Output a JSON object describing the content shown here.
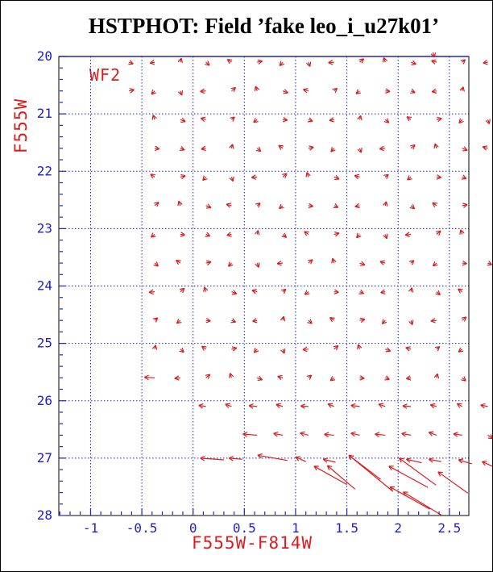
{
  "title": "HSTPHOT: Field ’fake leo_i_u27k01’",
  "camera_label": "WF2",
  "colors": {
    "accent_red": "#d81e1e",
    "accent_blue": "#2121cc",
    "frame": "#000000",
    "title_text": "#000000",
    "background": "#ffffff"
  },
  "chart_data": {
    "type": "quiver",
    "title": "HSTPHOT: Field ’fake leo_i_u27k01’",
    "xlabel": "F555W-F814W",
    "ylabel": "F555W",
    "annotation": "WF2",
    "xlim": [
      -1.31,
      2.69
    ],
    "ylim_top": 20,
    "ylim_bottom": 28,
    "x_gridlines": [
      -1,
      -0.5,
      0,
      0.5,
      1,
      1.5,
      2,
      2.5
    ],
    "y_gridlines": [
      21,
      22,
      23,
      24,
      25,
      26,
      27
    ],
    "x_major_ticks": [
      -1,
      -0.5,
      0,
      0.5,
      1,
      1.5,
      2,
      2.5
    ],
    "x_tick_labels": [
      "-1",
      "-0.5",
      "0",
      "0.5",
      "1",
      "1.5",
      "2",
      "2.5"
    ],
    "x_minor_step": 0.1,
    "y_major_ticks": [
      20,
      21,
      22,
      23,
      24,
      25,
      26,
      27,
      28
    ],
    "y_tick_labels": [
      "20",
      "21",
      "22",
      "23",
      "24",
      "25",
      "26",
      "27",
      "28"
    ],
    "y_minor_step": 0.2,
    "grid": true,
    "legend": "none",
    "vectors": [
      [
        -0.625,
        20.1,
        0.04,
        0.03
      ],
      [
        -0.375,
        20.1,
        -0.045,
        0.015
      ],
      [
        -0.125,
        20.1,
        0.01,
        -0.07
      ],
      [
        0.125,
        20.1,
        0.035,
        0.055
      ],
      [
        0.375,
        20.1,
        -0.04,
        -0.05
      ],
      [
        0.625,
        20.1,
        0.05,
        -0.02
      ],
      [
        0.875,
        20.1,
        -0.03,
        0.06
      ],
      [
        1.125,
        20.1,
        0.015,
        0.075
      ],
      [
        1.375,
        20.1,
        -0.055,
        0.01
      ],
      [
        1.625,
        20.1,
        0.04,
        -0.06
      ],
      [
        1.875,
        20.1,
        -0.015,
        -0.08
      ],
      [
        2.125,
        20.1,
        0.05,
        0.035
      ],
      [
        2.375,
        20.1,
        -0.05,
        -0.025
      ],
      [
        2.625,
        20.1,
        0.03,
        -0.045
      ],
      [
        2.875,
        20.1,
        -0.045,
        0.015
      ],
      [
        2.34,
        19.93,
        0.015,
        0.085
      ],
      [
        -0.625,
        20.6,
        0.05,
        -0.02
      ],
      [
        -0.375,
        20.6,
        -0.03,
        0.06
      ],
      [
        -0.125,
        20.6,
        0.015,
        0.075
      ],
      [
        0.125,
        20.6,
        -0.055,
        0.01
      ],
      [
        0.375,
        20.6,
        0.04,
        -0.06
      ],
      [
        0.625,
        20.6,
        -0.015,
        -0.08
      ],
      [
        0.875,
        20.6,
        0.05,
        0.035
      ],
      [
        1.125,
        20.6,
        -0.05,
        -0.025
      ],
      [
        1.375,
        20.6,
        0.03,
        -0.045
      ],
      [
        1.625,
        20.6,
        -0.035,
        0.05
      ],
      [
        1.875,
        20.6,
        0.045,
        0.01
      ],
      [
        2.125,
        20.6,
        0.04,
        0.03
      ],
      [
        2.375,
        20.6,
        -0.045,
        0.015
      ],
      [
        2.625,
        20.6,
        0.01,
        -0.07
      ],
      [
        -0.375,
        21.1,
        -0.015,
        -0.08
      ],
      [
        -0.125,
        21.1,
        0.05,
        0.035
      ],
      [
        0.125,
        21.1,
        -0.05,
        -0.025
      ],
      [
        0.375,
        21.1,
        0.03,
        -0.045
      ],
      [
        0.625,
        21.1,
        -0.035,
        0.05
      ],
      [
        0.875,
        21.1,
        0.045,
        0.01
      ],
      [
        1.125,
        21.1,
        0.04,
        0.03
      ],
      [
        1.375,
        21.1,
        -0.045,
        0.015
      ],
      [
        1.625,
        21.1,
        0.01,
        -0.07
      ],
      [
        1.875,
        21.1,
        0.035,
        0.055
      ],
      [
        2.125,
        21.1,
        -0.04,
        -0.05
      ],
      [
        2.375,
        21.1,
        0.05,
        -0.02
      ],
      [
        2.625,
        21.1,
        -0.03,
        0.06
      ],
      [
        2.875,
        21.1,
        0.015,
        0.075
      ],
      [
        -0.375,
        21.6,
        0.045,
        0.01
      ],
      [
        -0.125,
        21.6,
        0.04,
        0.03
      ],
      [
        0.125,
        21.6,
        -0.045,
        0.015
      ],
      [
        0.375,
        21.6,
        0.01,
        -0.07
      ],
      [
        0.625,
        21.6,
        0.035,
        0.055
      ],
      [
        0.875,
        21.6,
        -0.04,
        -0.05
      ],
      [
        1.125,
        21.6,
        0.05,
        -0.02
      ],
      [
        1.375,
        21.6,
        -0.03,
        0.06
      ],
      [
        1.625,
        21.6,
        0.015,
        0.075
      ],
      [
        1.875,
        21.6,
        -0.055,
        0.01
      ],
      [
        2.125,
        21.6,
        0.04,
        -0.06
      ],
      [
        2.375,
        21.6,
        -0.015,
        -0.08
      ],
      [
        2.625,
        21.6,
        0.05,
        0.035
      ],
      [
        2.875,
        21.6,
        -0.05,
        -0.025
      ],
      [
        -0.375,
        22.1,
        -0.04,
        -0.05
      ],
      [
        -0.125,
        22.1,
        0.05,
        -0.02
      ],
      [
        0.125,
        22.1,
        -0.03,
        0.06
      ],
      [
        0.375,
        22.1,
        0.015,
        0.075
      ],
      [
        0.625,
        22.1,
        -0.055,
        0.01
      ],
      [
        0.875,
        22.1,
        0.04,
        -0.06
      ],
      [
        1.125,
        22.1,
        -0.015,
        -0.08
      ],
      [
        1.375,
        22.1,
        0.05,
        0.035
      ],
      [
        1.625,
        22.1,
        -0.05,
        -0.025
      ],
      [
        1.875,
        22.1,
        0.03,
        -0.045
      ],
      [
        2.125,
        22.1,
        -0.035,
        0.05
      ],
      [
        2.375,
        22.1,
        0.045,
        0.01
      ],
      [
        2.625,
        22.1,
        0.04,
        0.03
      ],
      [
        -0.375,
        22.6,
        0.04,
        -0.06
      ],
      [
        -0.125,
        22.6,
        -0.015,
        -0.08
      ],
      [
        0.125,
        22.6,
        0.05,
        0.035
      ],
      [
        0.375,
        22.6,
        -0.05,
        -0.025
      ],
      [
        0.625,
        22.6,
        0.03,
        -0.045
      ],
      [
        0.875,
        22.6,
        -0.035,
        0.05
      ],
      [
        1.125,
        22.6,
        0.045,
        0.01
      ],
      [
        1.375,
        22.6,
        0.04,
        0.03
      ],
      [
        1.625,
        22.6,
        -0.045,
        0.015
      ],
      [
        1.875,
        22.6,
        0.01,
        -0.07
      ],
      [
        2.125,
        22.6,
        0.035,
        0.055
      ],
      [
        2.375,
        22.6,
        -0.04,
        -0.05
      ],
      [
        2.625,
        22.6,
        0.05,
        -0.02
      ],
      [
        -0.375,
        23.1,
        -0.035,
        0.05
      ],
      [
        -0.125,
        23.1,
        0.045,
        0.01
      ],
      [
        0.125,
        23.1,
        0.04,
        0.03
      ],
      [
        0.375,
        23.1,
        -0.045,
        0.015
      ],
      [
        0.625,
        23.1,
        0.01,
        -0.07
      ],
      [
        0.875,
        23.1,
        0.035,
        0.055
      ],
      [
        1.125,
        23.1,
        -0.04,
        -0.05
      ],
      [
        1.375,
        23.1,
        0.05,
        -0.02
      ],
      [
        1.625,
        23.1,
        -0.03,
        0.06
      ],
      [
        1.875,
        23.1,
        0.015,
        0.075
      ],
      [
        2.125,
        23.1,
        -0.055,
        0.01
      ],
      [
        2.375,
        23.1,
        0.04,
        -0.06
      ],
      [
        2.625,
        23.1,
        -0.015,
        -0.08
      ],
      [
        -0.375,
        23.6,
        0.035,
        0.055
      ],
      [
        -0.125,
        23.6,
        -0.04,
        -0.05
      ],
      [
        0.125,
        23.6,
        0.05,
        -0.02
      ],
      [
        0.375,
        23.6,
        -0.03,
        0.06
      ],
      [
        0.625,
        23.6,
        0.015,
        0.075
      ],
      [
        0.875,
        23.6,
        -0.055,
        0.01
      ],
      [
        1.125,
        23.6,
        0.04,
        -0.06
      ],
      [
        1.375,
        23.6,
        -0.015,
        -0.08
      ],
      [
        1.625,
        23.6,
        0.05,
        0.035
      ],
      [
        1.875,
        23.6,
        -0.05,
        -0.025
      ],
      [
        2.125,
        23.6,
        0.03,
        -0.045
      ],
      [
        2.375,
        23.6,
        -0.035,
        0.05
      ],
      [
        2.625,
        23.6,
        0.045,
        0.01
      ],
      [
        2.875,
        23.6,
        0.04,
        0.03
      ],
      [
        -0.375,
        24.1,
        -0.055,
        0.01
      ],
      [
        -0.125,
        24.1,
        0.04,
        -0.06
      ],
      [
        0.125,
        24.1,
        -0.015,
        -0.08
      ],
      [
        0.375,
        24.1,
        0.05,
        0.035
      ],
      [
        0.625,
        24.1,
        -0.05,
        -0.025
      ],
      [
        0.875,
        24.1,
        0.03,
        -0.045
      ],
      [
        1.125,
        24.1,
        -0.035,
        0.05
      ],
      [
        1.375,
        24.1,
        0.045,
        0.01
      ],
      [
        1.625,
        24.1,
        0.04,
        0.03
      ],
      [
        1.875,
        24.1,
        -0.045,
        0.015
      ],
      [
        2.125,
        24.1,
        0.01,
        -0.07
      ],
      [
        2.375,
        24.1,
        0.035,
        0.055
      ],
      [
        2.625,
        24.1,
        -0.04,
        -0.05
      ],
      [
        -0.375,
        24.6,
        0.03,
        -0.045
      ],
      [
        -0.125,
        24.6,
        -0.035,
        0.05
      ],
      [
        0.125,
        24.6,
        0.045,
        0.01
      ],
      [
        0.375,
        24.6,
        0.04,
        0.03
      ],
      [
        0.625,
        24.6,
        -0.045,
        0.015
      ],
      [
        0.875,
        24.6,
        0.01,
        -0.07
      ],
      [
        1.125,
        24.6,
        0.035,
        0.055
      ],
      [
        1.375,
        24.6,
        -0.04,
        -0.05
      ],
      [
        1.625,
        24.6,
        0.05,
        -0.02
      ],
      [
        1.875,
        24.6,
        -0.03,
        0.06
      ],
      [
        2.125,
        24.6,
        0.015,
        0.075
      ],
      [
        2.375,
        24.6,
        -0.055,
        0.01
      ],
      [
        2.625,
        24.6,
        0.04,
        -0.06
      ],
      [
        -0.375,
        25.1,
        0.01,
        -0.07
      ],
      [
        -0.125,
        25.1,
        0.035,
        0.055
      ],
      [
        0.125,
        25.1,
        -0.04,
        -0.05
      ],
      [
        0.375,
        25.1,
        0.05,
        -0.02
      ],
      [
        0.625,
        25.1,
        -0.03,
        0.06
      ],
      [
        0.875,
        25.1,
        0.015,
        0.075
      ],
      [
        1.125,
        25.1,
        -0.055,
        0.01
      ],
      [
        1.375,
        25.1,
        0.04,
        -0.06
      ],
      [
        1.625,
        25.1,
        -0.015,
        -0.08
      ],
      [
        1.875,
        25.1,
        0.05,
        0.035
      ],
      [
        2.125,
        25.1,
        -0.05,
        -0.025
      ],
      [
        2.375,
        25.1,
        0.03,
        -0.045
      ],
      [
        2.625,
        25.1,
        -0.035,
        0.05
      ],
      [
        -0.375,
        25.6,
        -0.1,
        -0.01
      ],
      [
        -0.125,
        25.6,
        -0.055,
        0.01
      ],
      [
        0.125,
        25.6,
        0.04,
        -0.06
      ],
      [
        0.375,
        25.6,
        -0.015,
        -0.08
      ],
      [
        0.625,
        25.6,
        0.05,
        0.035
      ],
      [
        0.875,
        25.6,
        -0.05,
        -0.025
      ],
      [
        1.125,
        25.6,
        0.03,
        -0.045
      ],
      [
        1.375,
        25.6,
        -0.035,
        0.05
      ],
      [
        1.625,
        25.6,
        0.045,
        0.01
      ],
      [
        1.875,
        25.6,
        0.04,
        0.03
      ],
      [
        2.125,
        25.6,
        -0.045,
        0.015
      ],
      [
        2.375,
        25.6,
        0.01,
        -0.07
      ],
      [
        2.625,
        25.6,
        0.035,
        0.055
      ],
      [
        0.125,
        26.1,
        -0.07,
        -0.02
      ],
      [
        0.375,
        26.1,
        -0.06,
        -0.04
      ],
      [
        0.625,
        26.1,
        -0.08,
        -0.015
      ],
      [
        0.875,
        26.1,
        -0.065,
        -0.035
      ],
      [
        1.125,
        26.1,
        -0.075,
        -0.01
      ],
      [
        1.375,
        26.1,
        -0.06,
        -0.045
      ],
      [
        1.625,
        26.1,
        -0.085,
        -0.02
      ],
      [
        1.875,
        26.1,
        -0.065,
        -0.04
      ],
      [
        2.125,
        26.1,
        -0.08,
        -0.01
      ],
      [
        2.375,
        26.1,
        -0.06,
        -0.03
      ],
      [
        2.625,
        26.1,
        -0.05,
        -0.05
      ],
      [
        2.875,
        26.1,
        -0.07,
        -0.025
      ],
      [
        0.625,
        26.6,
        -0.14,
        -0.02
      ],
      [
        0.875,
        26.6,
        -0.09,
        -0.03
      ],
      [
        1.125,
        26.6,
        -0.08,
        -0.04
      ],
      [
        1.375,
        26.6,
        -0.095,
        -0.015
      ],
      [
        1.625,
        26.6,
        -0.085,
        -0.035
      ],
      [
        1.875,
        26.6,
        -0.1,
        -0.02
      ],
      [
        2.125,
        26.6,
        -0.09,
        -0.03
      ],
      [
        2.375,
        26.6,
        -0.075,
        -0.05
      ],
      [
        2.625,
        26.6,
        -0.085,
        -0.025
      ],
      [
        2.875,
        26.6,
        0.05,
        0.06
      ],
      [
        0.3,
        27.03,
        -0.23,
        -0.03
      ],
      [
        0.48,
        27.02,
        -0.13,
        -0.02
      ],
      [
        0.92,
        27.04,
        -0.29,
        -0.09
      ],
      [
        1.1,
        27.06,
        -0.1,
        -0.08
      ],
      [
        1.39,
        27.07,
        -0.12,
        -0.05
      ],
      [
        2.23,
        27.08,
        -0.15,
        -0.06
      ],
      [
        2.42,
        27.06,
        -0.12,
        -0.04
      ],
      [
        2.72,
        27.1,
        -0.13,
        -0.07
      ],
      [
        2.93,
        27.15,
        -0.11,
        -0.09
      ],
      [
        1.5,
        27.46,
        -0.32,
        -0.32
      ],
      [
        1.58,
        27.54,
        -0.27,
        -0.41
      ],
      [
        1.95,
        27.58,
        -0.43,
        -0.63
      ],
      [
        1.83,
        27.37,
        -0.31,
        -0.42
      ],
      [
        2.37,
        27.47,
        -0.36,
        -0.47
      ],
      [
        2.68,
        27.61,
        -0.29,
        -0.37
      ],
      [
        2.29,
        27.51,
        -0.38,
        -0.37
      ],
      [
        2.31,
        27.89,
        -0.39,
        -0.39
      ],
      [
        2.42,
        27.99,
        -0.37,
        -0.4
      ]
    ]
  }
}
